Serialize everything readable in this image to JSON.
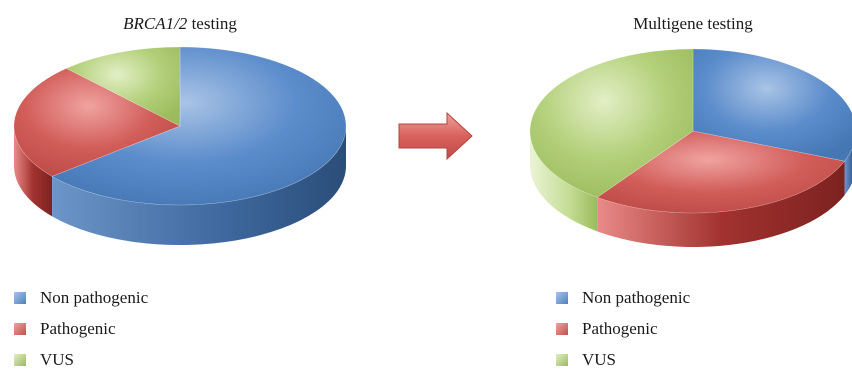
{
  "colors": {
    "non_pathogenic": "#4f81bd",
    "pathogenic": "#c0504d",
    "vus": "#9bbb59",
    "arrow": "#d65f59"
  },
  "chart_data": [
    {
      "type": "pie",
      "title_italic": "BRCA1/2",
      "title_rest": " testing",
      "slices": [
        {
          "label": "Non pathogenic",
          "value": 64
        },
        {
          "label": "Pathogenic",
          "value": 24
        },
        {
          "label": "VUS",
          "value": 12
        }
      ],
      "legend": [
        "Non pathogenic",
        "Pathogenic",
        "VUS"
      ],
      "legend_position": "bottom-left"
    },
    {
      "type": "pie",
      "title": "Multigene testing",
      "slices": [
        {
          "label": "Non pathogenic",
          "value": 31
        },
        {
          "label": "Pathogenic",
          "value": 29
        },
        {
          "label": "VUS",
          "value": 40
        }
      ],
      "legend": [
        "Non pathogenic",
        "Pathogenic",
        "VUS"
      ],
      "legend_position": "bottom-right"
    }
  ]
}
